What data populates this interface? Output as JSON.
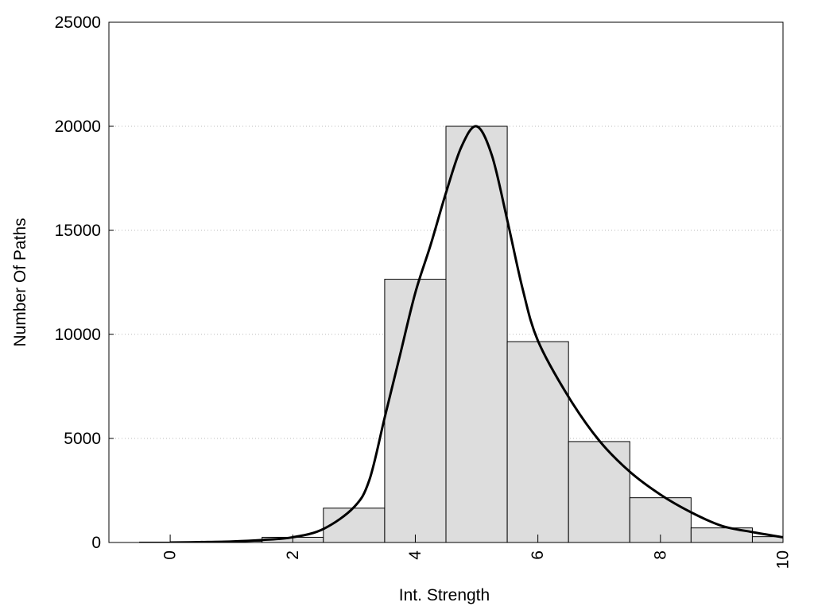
{
  "chart_data": {
    "type": "bar",
    "title": "",
    "xlabel": "Int. Strength",
    "ylabel": "Number Of Paths",
    "xlim": [
      -1,
      10
    ],
    "ylim": [
      0,
      25000
    ],
    "xticks": [
      0,
      2,
      4,
      6,
      8,
      10
    ],
    "yticks": [
      0,
      5000,
      10000,
      15000,
      20000,
      25000
    ],
    "grid": "horizontal-dotted",
    "bar_width": 1,
    "bar_color": "#dddddd",
    "bars": [
      {
        "x": 0,
        "value": 20
      },
      {
        "x": 1,
        "value": 60
      },
      {
        "x": 2,
        "value": 250
      },
      {
        "x": 3,
        "value": 1650
      },
      {
        "x": 4,
        "value": 12650
      },
      {
        "x": 5,
        "value": 20000
      },
      {
        "x": 6,
        "value": 9650
      },
      {
        "x": 7,
        "value": 4850
      },
      {
        "x": 8,
        "value": 2150
      },
      {
        "x": 9,
        "value": 700
      },
      {
        "x": 10,
        "value": 280
      }
    ],
    "curve": {
      "type": "line",
      "color": "#000000",
      "points": [
        [
          0,
          0
        ],
        [
          0.5,
          20
        ],
        [
          1,
          50
        ],
        [
          1.5,
          120
        ],
        [
          2,
          250
        ],
        [
          2.5,
          650
        ],
        [
          3,
          1700
        ],
        [
          3.25,
          3000
        ],
        [
          3.5,
          6000
        ],
        [
          3.75,
          9000
        ],
        [
          4,
          12000
        ],
        [
          4.25,
          14300
        ],
        [
          4.5,
          16800
        ],
        [
          4.75,
          19000
        ],
        [
          5,
          20000
        ],
        [
          5.25,
          18600
        ],
        [
          5.5,
          15500
        ],
        [
          5.75,
          12200
        ],
        [
          6,
          9700
        ],
        [
          6.5,
          7000
        ],
        [
          7,
          4900
        ],
        [
          7.5,
          3400
        ],
        [
          8,
          2300
        ],
        [
          8.5,
          1450
        ],
        [
          9,
          800
        ],
        [
          9.5,
          500
        ],
        [
          10,
          250
        ]
      ]
    }
  }
}
